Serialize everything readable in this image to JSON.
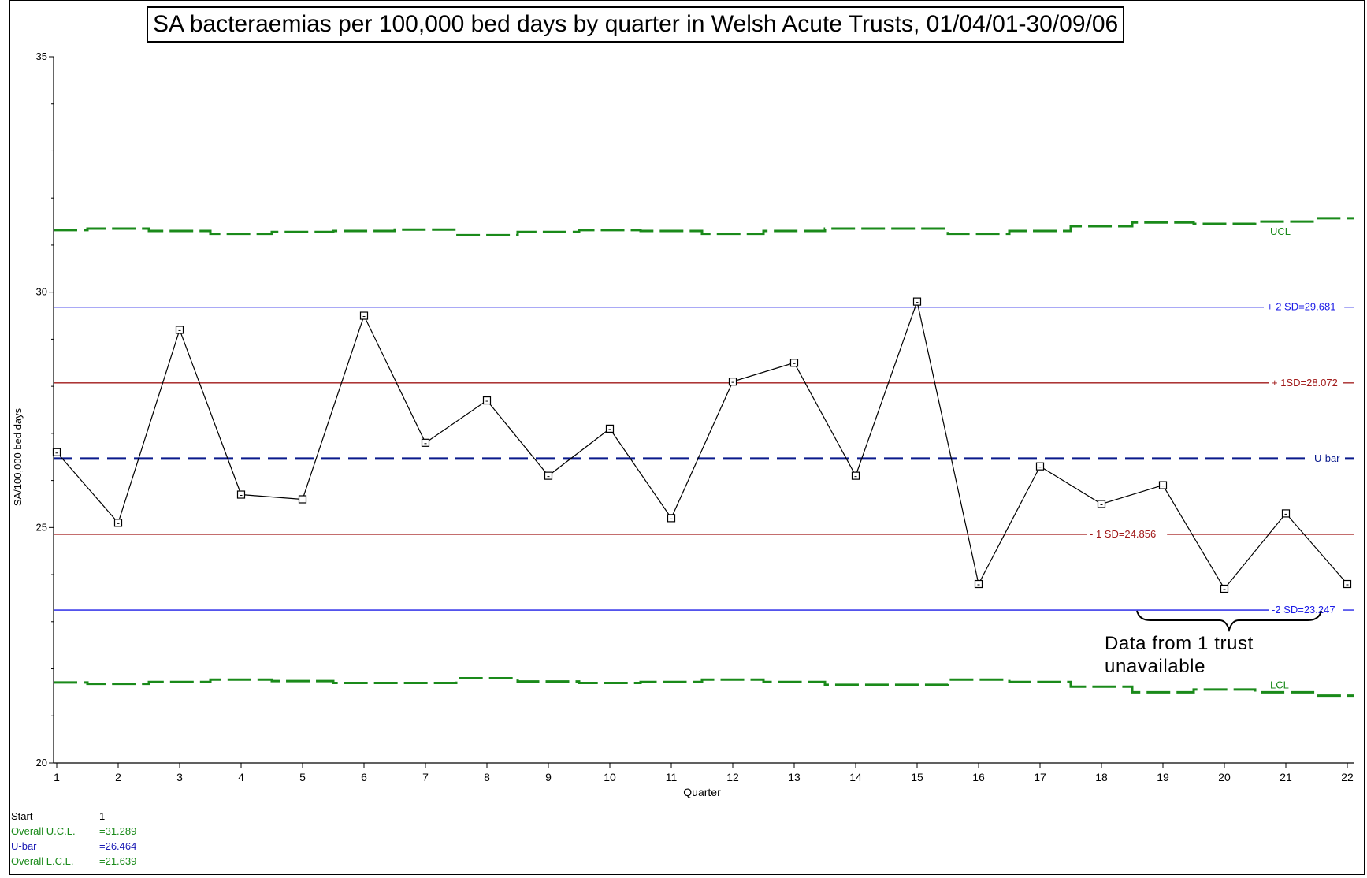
{
  "chart_data": {
    "type": "line",
    "title": "SA bacteraemias per 100,000 bed days by quarter in Welsh Acute Trusts, 01/04/01-30/09/06",
    "xlabel": "Quarter",
    "ylabel": "SA/100,000 bed days",
    "ylim": [
      20,
      35
    ],
    "yticks": [
      "20",
      "25",
      "30",
      "35"
    ],
    "categories": [
      "1",
      "2",
      "3",
      "4",
      "5",
      "6",
      "7",
      "8",
      "9",
      "10",
      "11",
      "12",
      "13",
      "14",
      "15",
      "16",
      "17",
      "18",
      "19",
      "20",
      "21",
      "22"
    ],
    "series": [
      {
        "values": [
          26.6,
          25.1,
          29.2,
          25.7,
          25.6,
          29.5,
          26.8,
          27.7,
          26.1,
          27.1,
          25.2,
          28.1,
          28.5,
          26.1,
          29.8,
          23.8,
          26.3,
          25.5,
          25.9,
          23.7,
          25.3,
          23.8
        ]
      }
    ],
    "ucl": [
      31.32,
      31.35,
      31.3,
      31.24,
      31.28,
      31.3,
      31.33,
      31.21,
      31.28,
      31.32,
      31.3,
      31.24,
      31.3,
      31.35,
      31.35,
      31.24,
      31.3,
      31.4,
      31.48,
      31.45,
      31.5,
      31.57
    ],
    "lcl": [
      21.71,
      21.68,
      21.72,
      21.77,
      21.74,
      21.7,
      21.7,
      21.8,
      21.73,
      21.7,
      21.72,
      21.77,
      21.72,
      21.66,
      21.66,
      21.77,
      21.72,
      21.62,
      21.5,
      21.56,
      21.5,
      21.43
    ],
    "reference_lines": [
      {
        "label": "+ 2 SD=29.681",
        "value": 29.681,
        "color": "#1a1ae6",
        "dash": false
      },
      {
        "label": "+ 1SD=28.072",
        "value": 28.072,
        "color": "#a01818",
        "dash": false
      },
      {
        "label": "U-bar",
        "value": 26.464,
        "color": "#0a1a8c",
        "dash": true
      },
      {
        "label": "- 1 SD=24.856",
        "value": 24.856,
        "color": "#a01818",
        "dash": false
      },
      {
        "label": "-2 SD=23.247",
        "value": 23.247,
        "color": "#1a1ae6",
        "dash": false
      }
    ],
    "ucl_label": "UCL",
    "lcl_label": "LCL",
    "grid": false,
    "colors": {
      "limits": "#1a8a1a",
      "sd2": "#1a1ae6",
      "sd1": "#a01818",
      "ubar": "#0a1a8c",
      "data": "#000000"
    }
  },
  "annotation": {
    "line1": "Data from 1 trust",
    "line2": "unavailable"
  },
  "footer": {
    "start_label": "Start",
    "start_value": "1",
    "ucl_label": "Overall U.C.L.",
    "ucl_value": "=31.289",
    "ubar_label": "U-bar",
    "ubar_value": "=26.464",
    "lcl_label": "Overall L.C.L.",
    "lcl_value": "=21.639"
  }
}
